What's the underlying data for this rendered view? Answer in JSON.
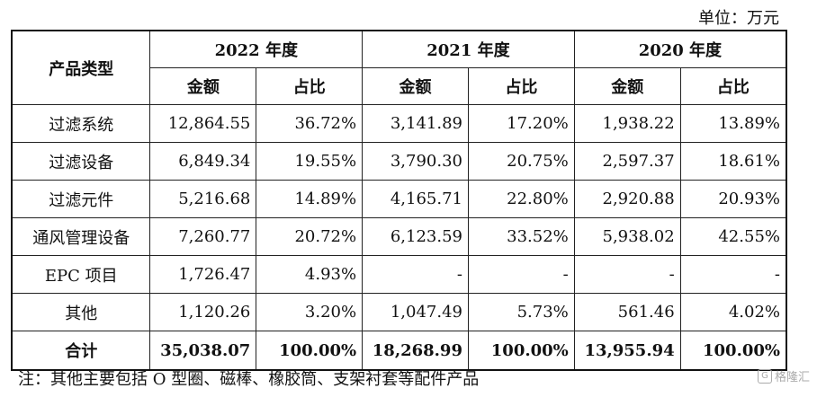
{
  "unit_label": "单位：万元",
  "header": {
    "product_type": "产品类型",
    "years": [
      "2022 年度",
      "2021 年度",
      "2020 年度"
    ],
    "amount": "金额",
    "ratio": "占比"
  },
  "rows": [
    {
      "name": "过滤系统",
      "v": [
        "12,864.55",
        "36.72%",
        "3,141.89",
        "17.20%",
        "1,938.22",
        "13.89%"
      ]
    },
    {
      "name": "过滤设备",
      "v": [
        "6,849.34",
        "19.55%",
        "3,790.30",
        "20.75%",
        "2,597.37",
        "18.61%"
      ]
    },
    {
      "name": "过滤元件",
      "v": [
        "5,216.68",
        "14.89%",
        "4,165.71",
        "22.80%",
        "2,920.88",
        "20.93%"
      ]
    },
    {
      "name": "通风管理设备",
      "v": [
        "7,260.77",
        "20.72%",
        "6,123.59",
        "33.52%",
        "5,938.02",
        "42.55%"
      ]
    },
    {
      "name": "EPC 项目",
      "v": [
        "1,726.47",
        "4.93%",
        "-",
        "-",
        "-",
        "-"
      ]
    },
    {
      "name": "其他",
      "v": [
        "1,120.26",
        "3.20%",
        "1,047.49",
        "5.73%",
        "561.46",
        "4.02%"
      ]
    }
  ],
  "total": {
    "name": "合计",
    "v": [
      "35,038.07",
      "100.00%",
      "18,268.99",
      "100.00%",
      "13,955.94",
      "100.00%"
    ]
  },
  "note": "注：其他主要包括 O 型圈、磁棒、橡胶筒、支架衬套等配件产品",
  "watermark": "格隆汇",
  "watermark_icon": "G"
}
